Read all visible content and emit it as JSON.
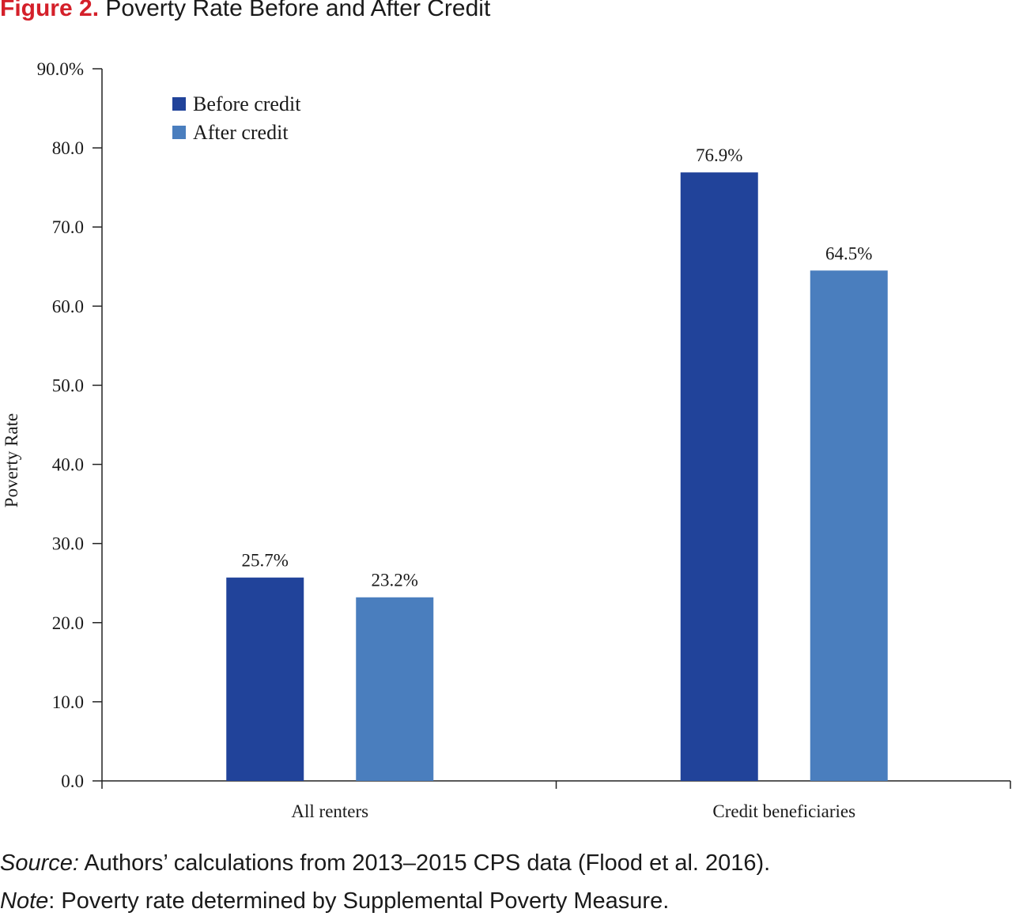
{
  "figure": {
    "label": "Figure 2.",
    "title": "Poverty Rate Before and After Credit",
    "label_color": "#d4202a"
  },
  "chart_data": {
    "type": "bar",
    "categories": [
      "All renters",
      "Credit beneficiaries"
    ],
    "series": [
      {
        "name": "Before credit",
        "values": [
          25.7,
          76.9
        ],
        "data_labels": [
          "25.7%",
          "76.9%"
        ],
        "color": "#21439a"
      },
      {
        "name": "After credit",
        "values": [
          23.2,
          64.5
        ],
        "data_labels": [
          "23.2%",
          "64.5%"
        ],
        "color": "#4a7ebe"
      }
    ],
    "ylabel": "Poverty Rate",
    "xlabel": "",
    "ylim": [
      0,
      90
    ],
    "yticks": [
      0,
      10,
      20,
      30,
      40,
      50,
      60,
      70,
      80,
      90
    ],
    "ytick_labels": [
      "0.0",
      "10.0",
      "20.0",
      "30.0",
      "40.0",
      "50.0",
      "60.0",
      "70.0",
      "80.0",
      "90.0%"
    ],
    "grid": false,
    "legend_position": "top-left"
  },
  "notes": {
    "source_label": "Source:",
    "source_text": " Authors’ calculations from 2013–2015 CPS data (Flood et al. 2016).",
    "note_label": "Note",
    "note_text": ": Poverty rate determined by Supplemental Poverty Measure."
  }
}
